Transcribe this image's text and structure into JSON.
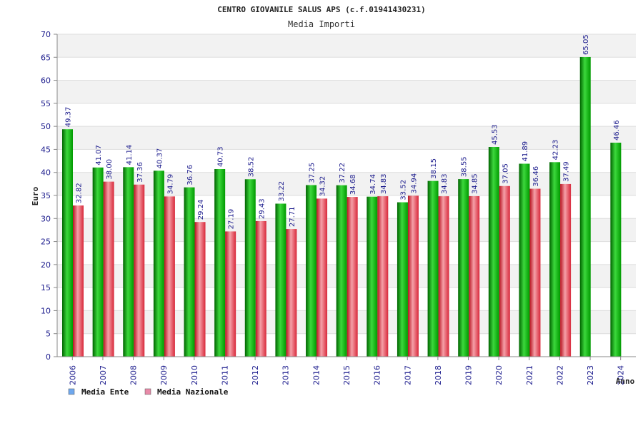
{
  "chart_data": {
    "type": "bar",
    "title": "CENTRO GIOVANILE SALUS APS (c.f.01941430231)",
    "subtitle": "Media Importi",
    "ylabel": "Euro",
    "xlabel": "Anno",
    "ylim": [
      0,
      70
    ],
    "yticks": [
      0,
      5,
      10,
      15,
      20,
      25,
      30,
      35,
      40,
      45,
      50,
      55,
      60,
      65,
      70
    ],
    "grid": true,
    "legend_position": "bottom-left",
    "categories": [
      "2006",
      "2007",
      "2008",
      "2009",
      "2010",
      "2011",
      "2012",
      "2013",
      "2014",
      "2015",
      "2016",
      "2017",
      "2018",
      "2019",
      "2020",
      "2021",
      "2022",
      "2023",
      "2024"
    ],
    "series": [
      {
        "name": "Media Ente",
        "color": "#00b400",
        "legend_color": "#6fa8ee",
        "values": [
          49.37,
          41.07,
          41.14,
          40.37,
          36.76,
          40.73,
          38.52,
          33.22,
          37.25,
          37.22,
          34.74,
          33.52,
          38.15,
          38.55,
          45.53,
          41.89,
          42.23,
          65.05,
          46.46
        ],
        "labels": [
          "49.37",
          "41.07",
          "41.14",
          "40.37",
          "36.76",
          "40.73",
          "38.52",
          "33.22",
          "37.25",
          "37.22",
          "34.74",
          "33.52",
          "38.15",
          "38.55",
          "45.53",
          "41.89",
          "42.23",
          "65.05",
          "46.46"
        ]
      },
      {
        "name": "Media Nazionale",
        "color": "#e83a4a",
        "legend_color": "#e88aa8",
        "values": [
          32.82,
          38.0,
          37.36,
          34.79,
          29.24,
          27.19,
          29.43,
          27.71,
          34.32,
          34.68,
          34.83,
          34.94,
          34.83,
          34.85,
          37.05,
          36.46,
          37.49,
          null,
          null
        ],
        "labels": [
          "32.82",
          "38.00",
          "37.36",
          "34.79",
          "29.24",
          "27.19",
          "29.43",
          "27.71",
          "34.32",
          "34.68",
          "34.83",
          "34.94",
          "34.83",
          "34.85",
          "37.05",
          "36.46",
          "37.49",
          "",
          ""
        ]
      }
    ]
  }
}
